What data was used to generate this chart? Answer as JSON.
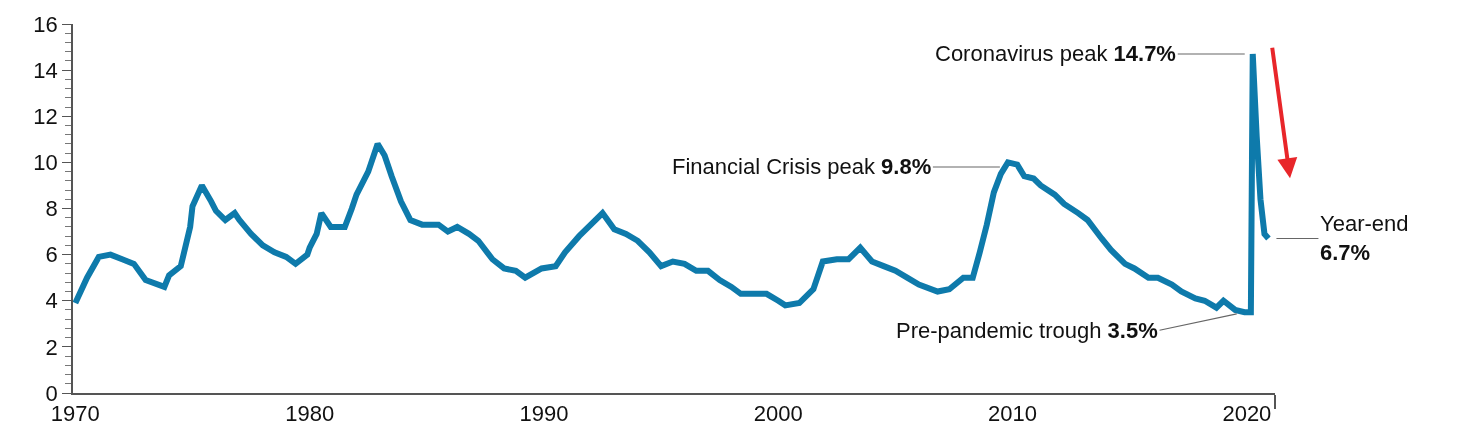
{
  "chart_data": {
    "type": "line",
    "marker": "none",
    "line_style": "solid",
    "x": [
      1970.0,
      1970.5,
      1971.0,
      1971.5,
      1972.0,
      1972.5,
      1973.0,
      1973.8,
      1974.0,
      1974.5,
      1974.9,
      1975.0,
      1975.4,
      1975.8,
      1976.0,
      1976.4,
      1976.8,
      1977.0,
      1977.5,
      1978.0,
      1978.5,
      1979.0,
      1979.4,
      1979.9,
      1980.0,
      1980.3,
      1980.5,
      1980.9,
      1981.5,
      1981.8,
      1982.0,
      1982.5,
      1982.9,
      1983.2,
      1983.5,
      1983.9,
      1984.3,
      1984.8,
      1985.5,
      1985.9,
      1986.3,
      1986.8,
      1987.2,
      1987.8,
      1988.3,
      1988.8,
      1989.2,
      1989.9,
      1990.5,
      1990.9,
      1991.5,
      1992.0,
      1992.5,
      1993.0,
      1993.5,
      1994.0,
      1994.5,
      1995.0,
      1995.5,
      1996.0,
      1996.5,
      1997.0,
      1997.5,
      1998.0,
      1998.4,
      1999.0,
      1999.5,
      2000.0,
      2000.3,
      2000.9,
      2001.5,
      2001.9,
      2002.5,
      2003.0,
      2003.5,
      2004.0,
      2004.5,
      2005.0,
      2005.5,
      2006.0,
      2006.8,
      2007.3,
      2007.9,
      2008.3,
      2008.6,
      2008.9,
      2009.2,
      2009.5,
      2009.8,
      2010.2,
      2010.5,
      2010.9,
      2011.2,
      2011.8,
      2012.2,
      2012.8,
      2013.2,
      2013.8,
      2014.2,
      2014.8,
      2015.2,
      2015.8,
      2016.2,
      2016.8,
      2017.2,
      2017.8,
      2018.2,
      2018.7,
      2019.0,
      2019.5,
      2019.9,
      2020.17,
      2020.25,
      2020.42,
      2020.58,
      2020.75,
      2020.92
    ],
    "series": [
      {
        "color": "#0e7aab",
        "values": [
          3.9,
          5.0,
          5.9,
          6.0,
          5.8,
          5.6,
          4.9,
          4.6,
          5.1,
          5.5,
          7.2,
          8.1,
          9.0,
          8.3,
          7.9,
          7.5,
          7.8,
          7.5,
          6.9,
          6.4,
          6.1,
          5.9,
          5.6,
          6.0,
          6.3,
          6.9,
          7.8,
          7.2,
          7.2,
          8.0,
          8.6,
          9.6,
          10.8,
          10.3,
          9.4,
          8.3,
          7.5,
          7.3,
          7.3,
          7.0,
          7.2,
          6.9,
          6.6,
          5.8,
          5.4,
          5.3,
          5.0,
          5.4,
          5.5,
          6.1,
          6.8,
          7.3,
          7.8,
          7.1,
          6.9,
          6.6,
          6.1,
          5.5,
          5.7,
          5.6,
          5.3,
          5.3,
          4.9,
          4.6,
          4.3,
          4.3,
          4.3,
          4.0,
          3.8,
          3.9,
          4.5,
          5.7,
          5.8,
          5.8,
          6.3,
          5.7,
          5.5,
          5.3,
          5.0,
          4.7,
          4.4,
          4.5,
          5.0,
          5.0,
          6.1,
          7.3,
          8.7,
          9.5,
          10.0,
          9.9,
          9.4,
          9.3,
          9.0,
          8.6,
          8.2,
          7.8,
          7.5,
          6.7,
          6.2,
          5.6,
          5.4,
          5.0,
          5.0,
          4.7,
          4.4,
          4.1,
          4.0,
          3.7,
          4.0,
          3.6,
          3.5,
          3.5,
          14.7,
          11.1,
          8.4,
          6.9,
          6.7
        ]
      }
    ],
    "xlim": [
      1969.9,
      2021.2
    ],
    "xticks": [
      1970,
      1980,
      1990,
      2000,
      2010,
      2020,
      {
        "value": 2021.2,
        "label": null
      }
    ],
    "ylim": [
      0,
      16
    ],
    "yticks": [
      0,
      2,
      4,
      6,
      8,
      10,
      12,
      14,
      16,
      {
        "value": 0.4,
        "label": null
      },
      {
        "value": 0.8,
        "label": null
      },
      {
        "value": 1.2,
        "label": null
      },
      {
        "value": 1.6,
        "label": null
      },
      {
        "value": 2.4,
        "label": null
      },
      {
        "value": 2.8,
        "label": null
      },
      {
        "value": 3.2,
        "label": null
      },
      {
        "value": 3.6,
        "label": null
      },
      {
        "value": 4.4,
        "label": null
      },
      {
        "value": 4.8,
        "label": null
      },
      {
        "value": 5.2,
        "label": null
      },
      {
        "value": 5.6,
        "label": null
      },
      {
        "value": 6.4,
        "label": null
      },
      {
        "value": 6.8,
        "label": null
      },
      {
        "value": 7.2,
        "label": null
      },
      {
        "value": 7.6,
        "label": null
      },
      {
        "value": 8.4,
        "label": null
      },
      {
        "value": 8.8,
        "label": null
      },
      {
        "value": 9.2,
        "label": null
      },
      {
        "value": 9.6,
        "label": null
      },
      {
        "value": 10.4,
        "label": null
      },
      {
        "value": 10.8,
        "label": null
      },
      {
        "value": 11.2,
        "label": null
      },
      {
        "value": 11.6,
        "label": null
      },
      {
        "value": 12.4,
        "label": null
      },
      {
        "value": 12.8,
        "label": null
      },
      {
        "value": 13.2,
        "label": null
      },
      {
        "value": 13.6,
        "label": null
      },
      {
        "value": 14.4,
        "label": null
      },
      {
        "value": 14.8,
        "label": null
      },
      {
        "value": 15.2,
        "label": null
      },
      {
        "value": 15.6,
        "label": null
      }
    ],
    "annotations": [
      {
        "text": "Coronavirus peak 14.7%",
        "x": 2020.25,
        "y": 14.7
      },
      {
        "text": "Financial Crisis peak 9.8%",
        "x": 2009.8,
        "y": 9.8
      },
      {
        "text": "Pre-pandemic trough 3.5%",
        "x": 2019.9,
        "y": 3.5
      },
      {
        "text": "Year-end\n6.7%",
        "x": 2020.92,
        "y": 6.7
      }
    ]
  }
}
